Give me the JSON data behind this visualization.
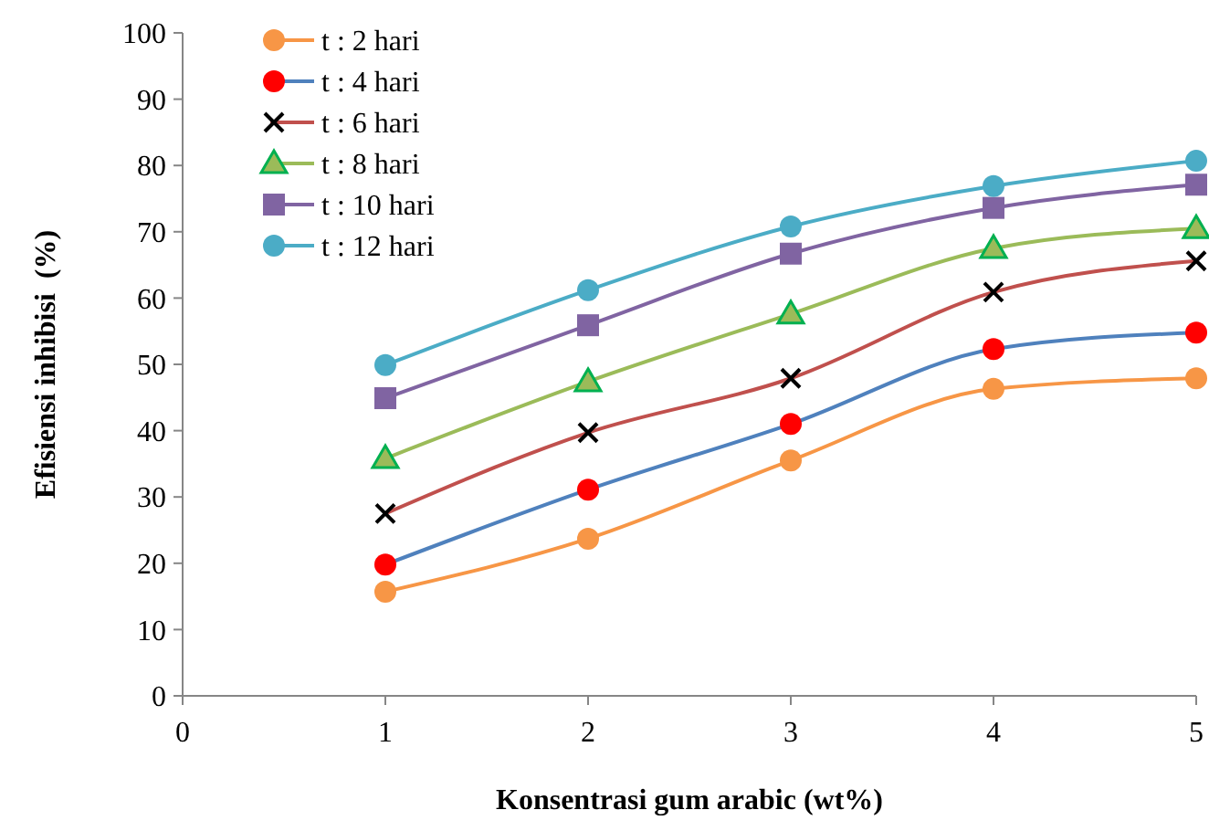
{
  "chart_data": {
    "type": "line",
    "xlabel": "Konsentrasi gum arabic (wt%)",
    "ylabel": "Efisiensi inhibisi  (%)",
    "x": [
      1,
      2,
      3,
      4,
      5
    ],
    "xlim": [
      0,
      5
    ],
    "xticks": [
      0,
      1,
      2,
      3,
      4,
      5
    ],
    "ylim": [
      0,
      100
    ],
    "yticks": [
      0,
      10,
      20,
      30,
      40,
      50,
      60,
      70,
      80,
      90,
      100
    ],
    "grid": false,
    "legend": "top left",
    "series": [
      {
        "name": "t : 2 hari",
        "color": "#f79646",
        "colors": [
          "#f79646",
          "#f79646",
          "#f79646",
          "#f79646",
          "#f79646"
        ],
        "marker": "circle",
        "values": [
          15.7,
          23.7,
          35.5,
          46.3,
          47.9
        ]
      },
      {
        "name": "t : 4 hari",
        "color": "#4f81bd",
        "colors": [
          "#ff0000",
          "#ff0000",
          "#ff0000",
          "#ff0000",
          "#ff0000"
        ],
        "marker": "circle",
        "values": [
          19.8,
          31.1,
          41.0,
          52.3,
          54.8
        ]
      },
      {
        "name": "t : 6 hari",
        "color": "#c0504d",
        "colors": [
          "#000000",
          "#000000",
          "#000000",
          "#000000",
          "#000000"
        ],
        "marker": "cross",
        "values": [
          27.5,
          39.7,
          47.9,
          60.9,
          65.6
        ]
      },
      {
        "name": "t : 8 hari",
        "color": "#9bbb59",
        "colors": [
          "#9bbb59",
          "#9bbb59",
          "#9bbb59",
          "#9bbb59",
          "#9bbb59"
        ],
        "marker": "triangle",
        "values": [
          35.8,
          47.4,
          57.6,
          67.5,
          70.5
        ]
      },
      {
        "name": "t : 10 hari",
        "color": "#8064a2",
        "colors": [
          "#8064a2",
          "#8064a2",
          "#8064a2",
          "#8064a2",
          "#8064a2"
        ],
        "marker": "square",
        "values": [
          44.9,
          55.9,
          66.7,
          73.6,
          77.1
        ]
      },
      {
        "name": "t : 12 hari",
        "color": "#4bacc6",
        "colors": [
          "#4bacc6",
          "#4bacc6",
          "#4bacc6",
          "#4bacc6",
          "#4bacc6"
        ],
        "marker": "circle",
        "values": [
          49.9,
          61.2,
          70.8,
          76.9,
          80.7
        ]
      }
    ]
  }
}
